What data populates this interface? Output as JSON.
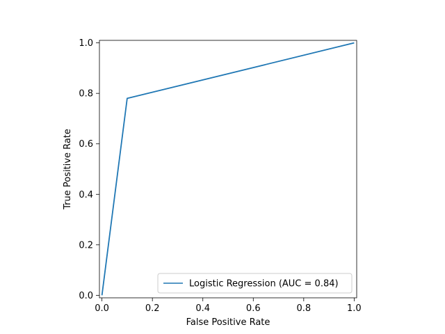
{
  "chart_data": {
    "type": "line",
    "title": "",
    "xlabel": "False Positive Rate",
    "ylabel": "True Positive Rate",
    "xlim": [
      -0.01,
      1.01
    ],
    "ylim": [
      -0.01,
      1.01
    ],
    "xticks": [
      0.0,
      0.2,
      0.4,
      0.6,
      0.8,
      1.0
    ],
    "yticks": [
      0.0,
      0.2,
      0.4,
      0.6,
      0.8,
      1.0
    ],
    "xtick_labels": [
      "0.0",
      "0.2",
      "0.4",
      "0.6",
      "0.8",
      "1.0"
    ],
    "ytick_labels": [
      "0.0",
      "0.2",
      "0.4",
      "0.6",
      "0.8",
      "1.0"
    ],
    "grid": false,
    "legend_position": "lower-right",
    "series": [
      {
        "name": "Logistic Regression (AUC = 0.84)",
        "color": "#1f77b4",
        "x": [
          0.0,
          0.1,
          1.0
        ],
        "y": [
          0.0,
          0.78,
          1.0
        ]
      }
    ]
  }
}
